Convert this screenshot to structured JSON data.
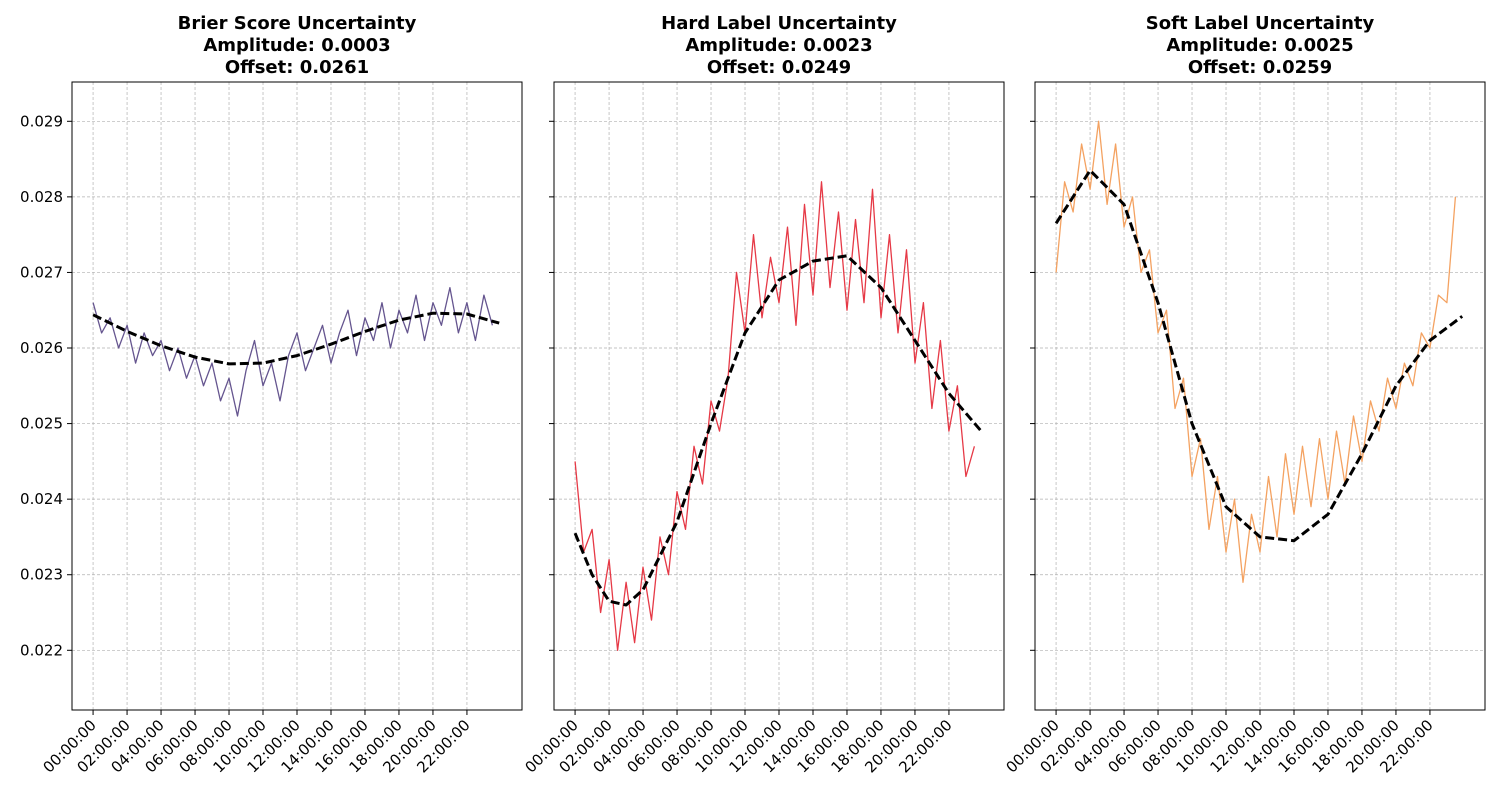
{
  "chart_data": [
    {
      "type": "line",
      "title": "Brier Score Uncertainty",
      "annotations": [
        "Amplitude: 0.0003",
        "Offset: 0.0261"
      ],
      "show_ytick_labels": true,
      "grid": true,
      "x": [
        0,
        0.5,
        1,
        1.5,
        2,
        2.5,
        3,
        3.5,
        4,
        4.5,
        5,
        5.5,
        6,
        6.5,
        7,
        7.5,
        8,
        8.5,
        9,
        9.5,
        10,
        10.5,
        11,
        11.5,
        12,
        12.5,
        13,
        13.5,
        14,
        14.5,
        15,
        15.5,
        16,
        16.5,
        17,
        17.5,
        18,
        18.5,
        19,
        19.5,
        20,
        20.5,
        21,
        21.5,
        22,
        22.5,
        23,
        23.5
      ],
      "series": [
        {
          "color": "#65558f",
          "values": [
            0.0266,
            0.0262,
            0.0264,
            0.026,
            0.0263,
            0.0258,
            0.0262,
            0.0259,
            0.0261,
            0.0257,
            0.026,
            0.0256,
            0.0259,
            0.0255,
            0.0258,
            0.0253,
            0.0256,
            0.0251,
            0.0257,
            0.0261,
            0.0255,
            0.0258,
            0.0253,
            0.0259,
            0.0262,
            0.0257,
            0.026,
            0.0263,
            0.0258,
            0.0262,
            0.0265,
            0.0259,
            0.0264,
            0.0261,
            0.0266,
            0.026,
            0.0265,
            0.0262,
            0.0267,
            0.0261,
            0.0266,
            0.0263,
            0.0268,
            0.0262,
            0.0266,
            0.0261,
            0.0267,
            0.0263
          ]
        },
        {
          "color": "#000000",
          "dashed": true,
          "x": [
            0,
            2,
            4,
            6,
            8,
            10,
            12,
            14,
            16,
            18,
            20,
            22,
            23.9
          ],
          "values": [
            0.02644,
            0.02622,
            0.02603,
            0.02588,
            0.02579,
            0.0258,
            0.0259,
            0.02605,
            0.02622,
            0.02637,
            0.02646,
            0.02645,
            0.02633
          ]
        }
      ],
      "xlim": [
        -1.24,
        25.24
      ],
      "ylim": [
        0.02121,
        0.02952
      ],
      "yticks": [
        0.022,
        0.023,
        0.024,
        0.025,
        0.026,
        0.027,
        0.028,
        0.029
      ],
      "xticks": [
        {
          "value": 0,
          "label": "00:00:00"
        },
        {
          "value": 2,
          "label": "02:00:00"
        },
        {
          "value": 4,
          "label": "04:00:00"
        },
        {
          "value": 6,
          "label": "06:00:00"
        },
        {
          "value": 8,
          "label": "08:00:00"
        },
        {
          "value": 10,
          "label": "10:00:00"
        },
        {
          "value": 12,
          "label": "12:00:00"
        },
        {
          "value": 14,
          "label": "14:00:00"
        },
        {
          "value": 16,
          "label": "16:00:00"
        },
        {
          "value": 18,
          "label": "18:00:00"
        },
        {
          "value": 20,
          "label": "20:00:00"
        },
        {
          "value": 22,
          "label": "22:00:00"
        }
      ]
    },
    {
      "type": "line",
      "title": "Hard Label Uncertainty",
      "annotations": [
        "Amplitude: 0.0023",
        "Offset: 0.0249"
      ],
      "show_ytick_labels": false,
      "grid": true,
      "x": [
        0,
        0.5,
        1,
        1.5,
        2,
        2.5,
        3,
        3.5,
        4,
        4.5,
        5,
        5.5,
        6,
        6.5,
        7,
        7.5,
        8,
        8.5,
        9,
        9.5,
        10,
        10.5,
        11,
        11.5,
        12,
        12.5,
        13,
        13.5,
        14,
        14.5,
        15,
        15.5,
        16,
        16.5,
        17,
        17.5,
        18,
        18.5,
        19,
        19.5,
        20,
        20.5,
        21,
        21.5,
        22,
        22.5,
        23,
        23.5
      ],
      "series": [
        {
          "color": "#e63946",
          "values": [
            0.0245,
            0.0233,
            0.0236,
            0.0225,
            0.0232,
            0.022,
            0.0229,
            0.0221,
            0.0231,
            0.0224,
            0.0235,
            0.023,
            0.0241,
            0.0236,
            0.0247,
            0.0242,
            0.0253,
            0.0249,
            0.0256,
            0.027,
            0.0262,
            0.0275,
            0.0264,
            0.0272,
            0.0266,
            0.0276,
            0.0263,
            0.0279,
            0.0267,
            0.0282,
            0.0268,
            0.0278,
            0.0265,
            0.0277,
            0.0266,
            0.0281,
            0.0264,
            0.0275,
            0.0262,
            0.0273,
            0.0258,
            0.0266,
            0.0252,
            0.0261,
            0.0249,
            0.0255,
            0.0243,
            0.0247
          ]
        },
        {
          "color": "#000000",
          "dashed": true,
          "x": [
            0,
            1,
            2,
            3,
            4,
            6,
            8,
            10,
            12,
            14,
            16,
            18,
            20,
            22,
            23.9
          ],
          "values": [
            0.02355,
            0.023,
            0.02265,
            0.0226,
            0.0228,
            0.0237,
            0.025,
            0.0262,
            0.0269,
            0.02715,
            0.02722,
            0.0268,
            0.0261,
            0.0254,
            0.0249
          ]
        }
      ],
      "xlim": [
        -1.24,
        25.24
      ],
      "ylim": [
        0.02121,
        0.02952
      ],
      "yticks": [
        0.022,
        0.023,
        0.024,
        0.025,
        0.026,
        0.027,
        0.028,
        0.029
      ],
      "xticks": [
        {
          "value": 0,
          "label": "00:00:00"
        },
        {
          "value": 2,
          "label": "02:00:00"
        },
        {
          "value": 4,
          "label": "04:00:00"
        },
        {
          "value": 6,
          "label": "06:00:00"
        },
        {
          "value": 8,
          "label": "08:00:00"
        },
        {
          "value": 10,
          "label": "10:00:00"
        },
        {
          "value": 12,
          "label": "12:00:00"
        },
        {
          "value": 14,
          "label": "14:00:00"
        },
        {
          "value": 16,
          "label": "16:00:00"
        },
        {
          "value": 18,
          "label": "18:00:00"
        },
        {
          "value": 20,
          "label": "20:00:00"
        },
        {
          "value": 22,
          "label": "22:00:00"
        }
      ]
    },
    {
      "type": "line",
      "title": "Soft Label Uncertainty",
      "annotations": [
        "Amplitude: 0.0025",
        "Offset: 0.0259"
      ],
      "show_ytick_labels": false,
      "grid": true,
      "x": [
        0,
        0.5,
        1,
        1.5,
        2,
        2.5,
        3,
        3.5,
        4,
        4.5,
        5,
        5.5,
        6,
        6.5,
        7,
        7.5,
        8,
        8.5,
        9,
        9.5,
        10,
        10.5,
        11,
        11.5,
        12,
        12.5,
        13,
        13.5,
        14,
        14.5,
        15,
        15.5,
        16,
        16.5,
        17,
        17.5,
        18,
        18.5,
        19,
        19.5,
        20,
        20.5,
        21,
        21.5,
        22,
        22.5,
        23,
        23.5
      ],
      "series": [
        {
          "color": "#f4a261",
          "values": [
            0.027,
            0.0282,
            0.0278,
            0.0287,
            0.0281,
            0.029,
            0.0279,
            0.0287,
            0.0276,
            0.028,
            0.027,
            0.0273,
            0.0262,
            0.0265,
            0.0252,
            0.0256,
            0.0243,
            0.0248,
            0.0236,
            0.0243,
            0.0233,
            0.024,
            0.0229,
            0.0238,
            0.0233,
            0.0243,
            0.0235,
            0.0246,
            0.0238,
            0.0247,
            0.0239,
            0.0248,
            0.024,
            0.0249,
            0.0242,
            0.0251,
            0.0245,
            0.0253,
            0.0249,
            0.0256,
            0.0252,
            0.0258,
            0.0255,
            0.0262,
            0.026,
            0.0267,
            0.0266,
            0.028
          ]
        },
        {
          "color": "#000000",
          "dashed": true,
          "x": [
            0,
            2,
            4,
            6,
            8,
            10,
            12,
            14,
            16,
            18,
            20,
            22,
            23.9
          ],
          "values": [
            0.02765,
            0.02835,
            0.0279,
            0.0266,
            0.025,
            0.0239,
            0.0235,
            0.02345,
            0.0238,
            0.0246,
            0.0255,
            0.0261,
            0.02642
          ]
        }
      ],
      "xlim": [
        -1.24,
        25.24
      ],
      "ylim": [
        0.02121,
        0.02952
      ],
      "yticks": [
        0.022,
        0.023,
        0.024,
        0.025,
        0.026,
        0.027,
        0.028,
        0.029
      ],
      "xticks": [
        {
          "value": 0,
          "label": "00:00:00"
        },
        {
          "value": 2,
          "label": "02:00:00"
        },
        {
          "value": 4,
          "label": "04:00:00"
        },
        {
          "value": 6,
          "label": "06:00:00"
        },
        {
          "value": 8,
          "label": "08:00:00"
        },
        {
          "value": 10,
          "label": "10:00:00"
        },
        {
          "value": 12,
          "label": "12:00:00"
        },
        {
          "value": 14,
          "label": "14:00:00"
        },
        {
          "value": 16,
          "label": "16:00:00"
        },
        {
          "value": 18,
          "label": "18:00:00"
        },
        {
          "value": 20,
          "label": "20:00:00"
        },
        {
          "value": 22,
          "label": "22:00:00"
        }
      ]
    }
  ]
}
